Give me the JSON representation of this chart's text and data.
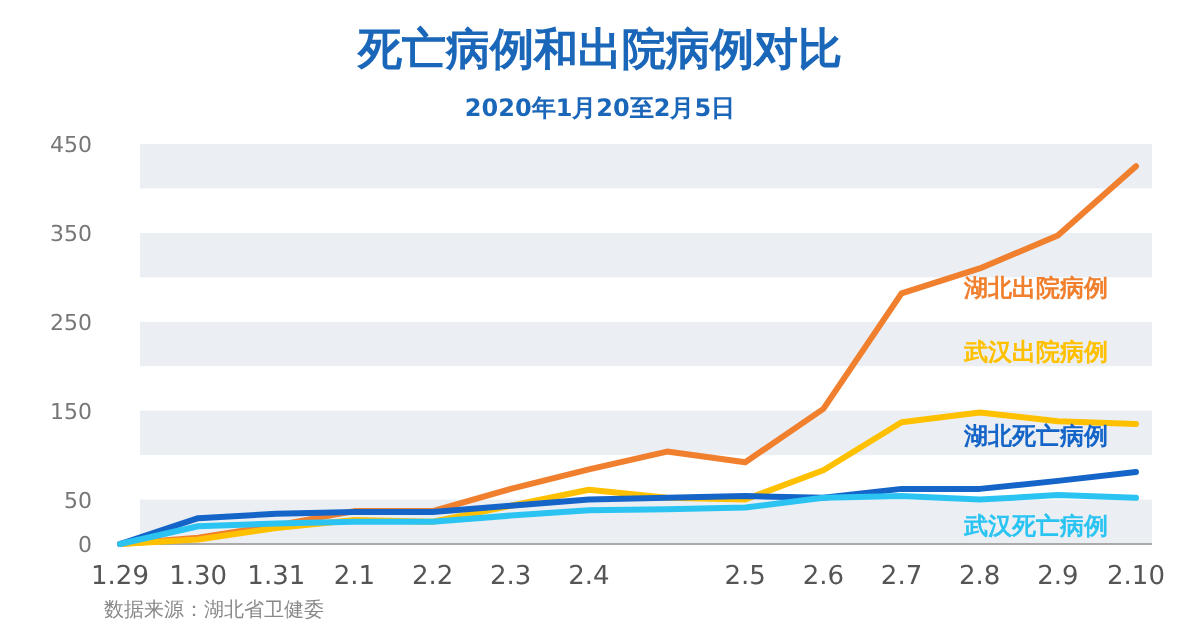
{
  "chart_data": {
    "type": "line",
    "title": "死亡病例和出院病例对比",
    "subtitle": "2020年1月20至2月5日",
    "categories": [
      "1.29",
      "1.30",
      "1.31",
      "2.1",
      "2.2",
      "2.3",
      "2.4",
      null,
      "2.5",
      "2.6",
      "2.7",
      "2.8",
      "2.9",
      "2.10"
    ],
    "ylim": [
      0,
      450
    ],
    "yticks": [
      0,
      50,
      150,
      250,
      350,
      450
    ],
    "marker": "none",
    "bands": [
      {
        "axis": "y",
        "from": 400,
        "to": 450,
        "color": "#ebeff4"
      },
      {
        "axis": "y",
        "from": 300,
        "to": 350,
        "color": "#ebeff4"
      },
      {
        "axis": "y",
        "from": 200,
        "to": 250,
        "color": "#ebeff4"
      },
      {
        "axis": "y",
        "from": 100,
        "to": 150,
        "color": "#ebeff4"
      },
      {
        "axis": "y",
        "from": 0,
        "to": 50,
        "color": "#ebeff4"
      }
    ],
    "line_style": "solid",
    "series": [
      {
        "name": "湖北出院病例",
        "color": "#f07f2e",
        "values": [
          0,
          7,
          21,
          37,
          37,
          62,
          84,
          104,
          92,
          152,
          282,
          310,
          347,
          425
        ]
      },
      {
        "name": "武汉出院病例",
        "color": "#ffc000",
        "values": [
          0,
          5,
          18,
          27,
          25,
          43,
          61,
          52,
          50,
          83,
          137,
          148,
          138,
          135
        ]
      },
      {
        "name": "湖北死亡病例",
        "color": "#1565c8",
        "values": [
          0,
          29,
          34,
          36,
          36,
          43,
          50,
          52,
          54,
          52,
          62,
          62,
          71,
          81
        ]
      },
      {
        "name": "武汉死亡病例",
        "color": "#2bc4f2",
        "values": [
          0,
          20,
          23,
          25,
          25,
          32,
          38,
          39,
          41,
          52,
          54,
          50,
          55,
          52
        ]
      }
    ],
    "annotations": [
      "数据来源：湖北省卫健委"
    ]
  }
}
